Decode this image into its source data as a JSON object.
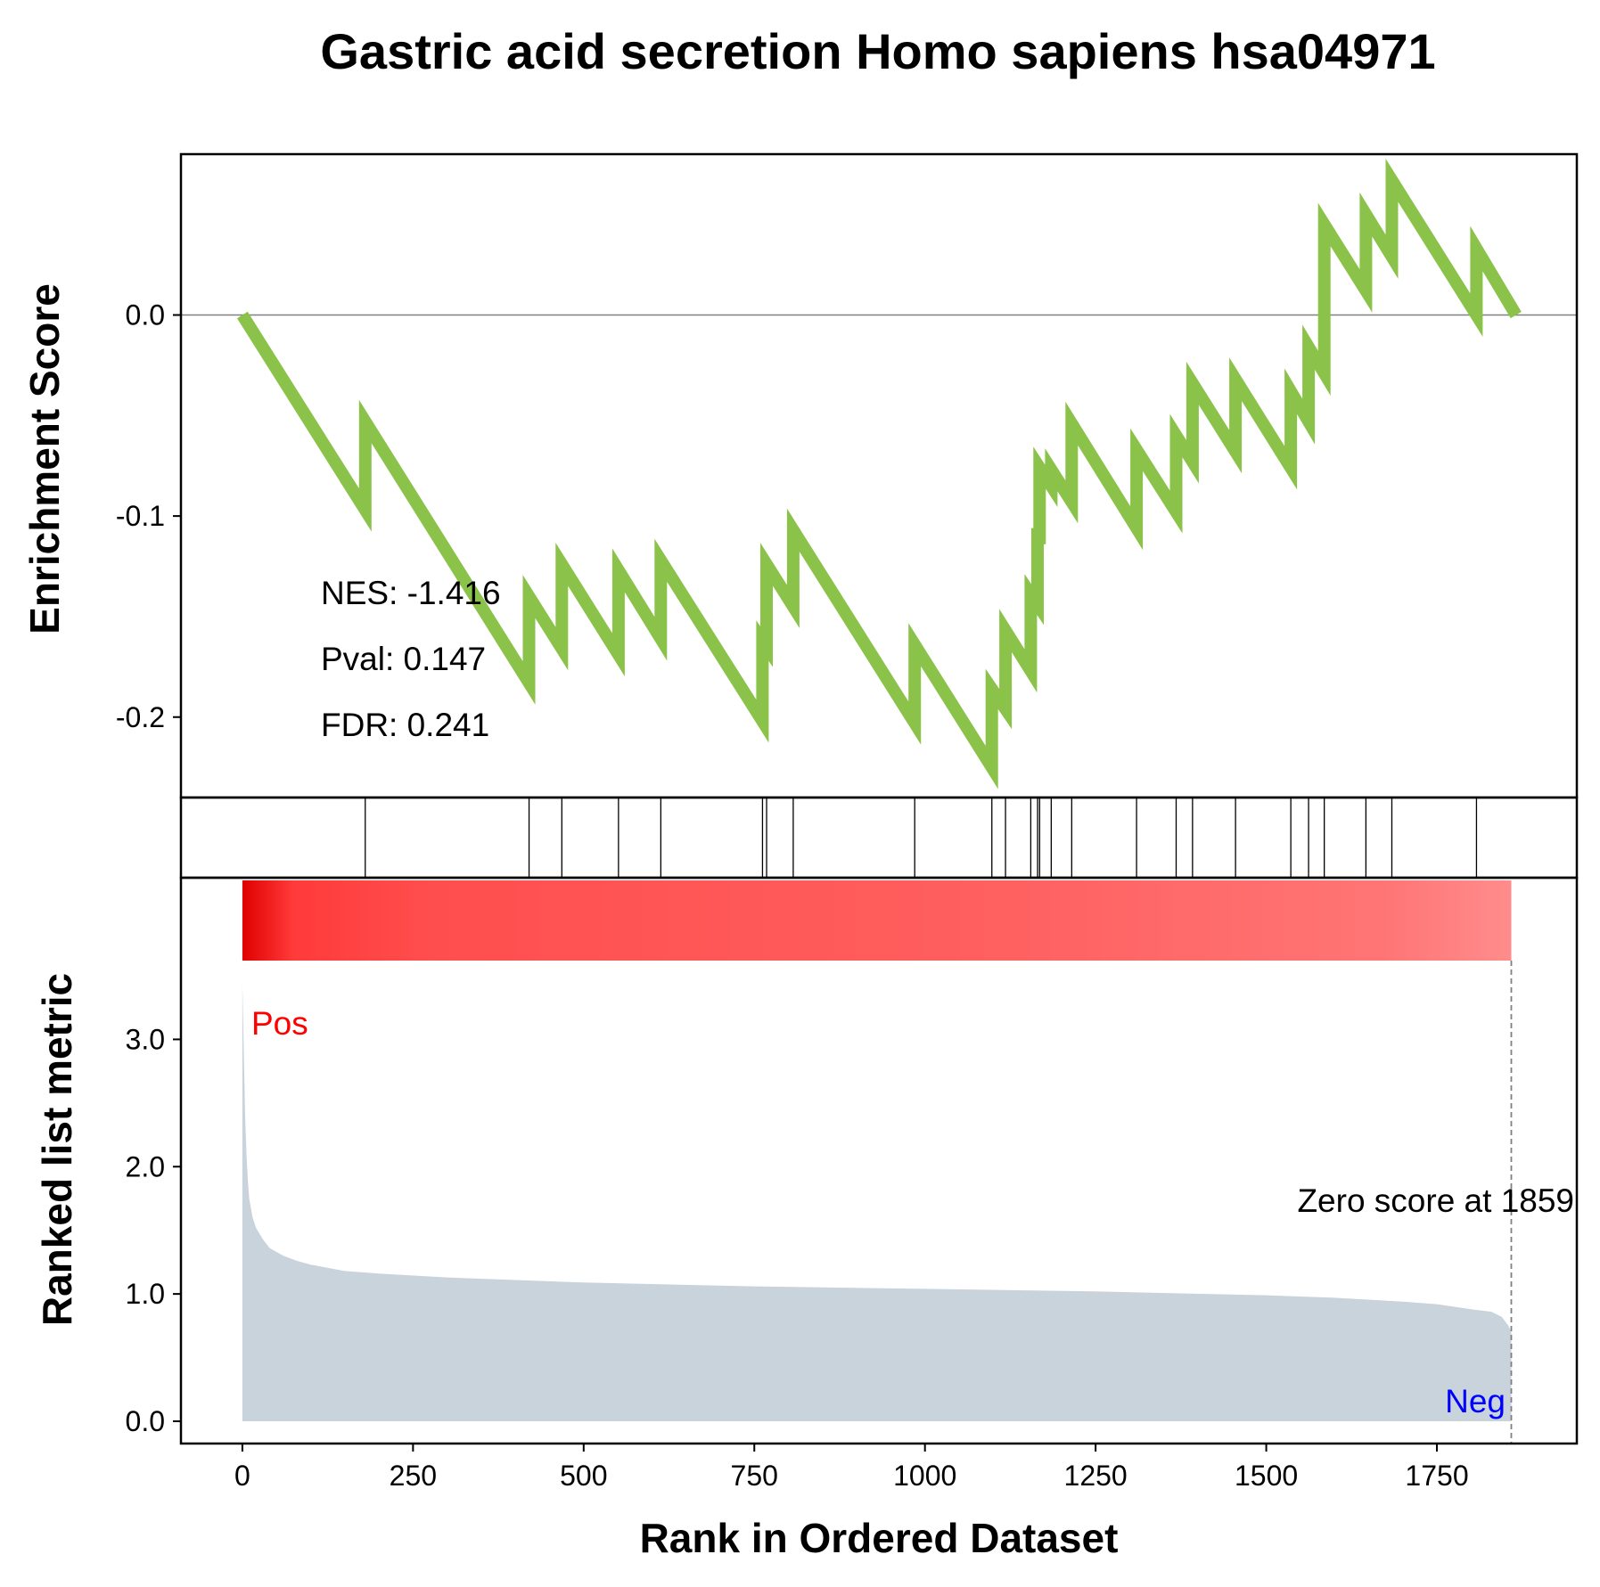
{
  "chart_data": {
    "type": "line",
    "title": "Gastric acid secretion Homo sapiens hsa04971",
    "xlabel": "Rank in Ordered Dataset",
    "xlim": [
      -90,
      1955
    ],
    "xticks": [
      0,
      250,
      500,
      750,
      1000,
      1250,
      1500,
      1750
    ],
    "xtick_labels": [
      "0",
      "250",
      "500",
      "750",
      "1000",
      "1250",
      "1500",
      "1750"
    ],
    "enrichment": {
      "ylabel": "Enrichment Score",
      "ylim": [
        -0.24,
        0.08
      ],
      "yticks": [
        0.0,
        -0.1,
        -0.2
      ],
      "ytick_labels": [
        "0.0",
        "-0.1",
        "-0.2"
      ],
      "line_color": "#8bc34a",
      "baseline": 0.0,
      "series": [
        {
          "x": [
            0,
            180,
            180,
            420,
            420,
            468,
            468,
            551,
            551,
            613,
            613,
            762,
            762,
            768,
            768,
            807,
            807,
            985,
            985,
            1098,
            1098,
            1118,
            1118,
            1155,
            1155,
            1165,
            1165,
            1168,
            1168,
            1185,
            1185,
            1215,
            1215,
            1310,
            1310,
            1368,
            1368,
            1392,
            1392,
            1455,
            1455,
            1536,
            1536,
            1562,
            1562,
            1585,
            1585,
            1646,
            1646,
            1684,
            1684,
            1808,
            1808,
            1866
          ],
          "y": [
            0.0,
            -0.097,
            -0.053,
            -0.183,
            -0.14,
            -0.166,
            -0.124,
            -0.169,
            -0.127,
            -0.161,
            -0.122,
            -0.202,
            -0.162,
            -0.165,
            -0.124,
            -0.145,
            -0.107,
            -0.203,
            -0.164,
            -0.225,
            -0.186,
            -0.196,
            -0.157,
            -0.177,
            -0.139,
            -0.144,
            -0.106,
            -0.114,
            -0.076,
            -0.085,
            -0.077,
            -0.093,
            -0.054,
            -0.106,
            -0.067,
            -0.098,
            -0.06,
            -0.073,
            -0.034,
            -0.068,
            -0.032,
            -0.076,
            -0.038,
            -0.053,
            -0.016,
            -0.029,
            0.045,
            0.012,
            0.05,
            0.029,
            0.067,
            0.0,
            0.033,
            0.0
          ]
        }
      ],
      "annotations": [
        "NES: -1.416",
        "Pval: 0.147",
        "FDR: 0.241"
      ]
    },
    "hits": {
      "positions": [
        180,
        420,
        468,
        551,
        613,
        762,
        768,
        807,
        985,
        1098,
        1118,
        1155,
        1165,
        1168,
        1185,
        1215,
        1310,
        1368,
        1392,
        1455,
        1536,
        1562,
        1585,
        1646,
        1684,
        1808
      ]
    },
    "ranked_metric": {
      "ylabel": "Ranked list metric",
      "ylim": [
        0.0,
        3.5
      ],
      "yticks": [
        0.0,
        1.0,
        2.0,
        3.0
      ],
      "ytick_labels": [
        "0.0",
        "1.0",
        "2.0",
        "3.0"
      ],
      "fill_color": "#c9d3dc",
      "curve": {
        "x": [
          0,
          2,
          4,
          6,
          8,
          10,
          15,
          20,
          30,
          40,
          60,
          80,
          100,
          150,
          200,
          300,
          500,
          750,
          1000,
          1250,
          1500,
          1600,
          1700,
          1750,
          1800,
          1830,
          1845,
          1855,
          1859
        ],
        "y": [
          3.45,
          2.9,
          2.4,
          2.1,
          1.9,
          1.75,
          1.6,
          1.52,
          1.43,
          1.36,
          1.3,
          1.26,
          1.23,
          1.18,
          1.16,
          1.13,
          1.09,
          1.06,
          1.04,
          1.02,
          0.99,
          0.97,
          0.94,
          0.92,
          0.88,
          0.86,
          0.82,
          0.75,
          0.7
        ]
      },
      "zero_score_position": 1859,
      "zero_score_label": "Zero score at 1859",
      "pos_label": "Pos",
      "neg_label": "Neg",
      "pos_color": "#ff0000",
      "neg_color": "#0000ff"
    }
  }
}
